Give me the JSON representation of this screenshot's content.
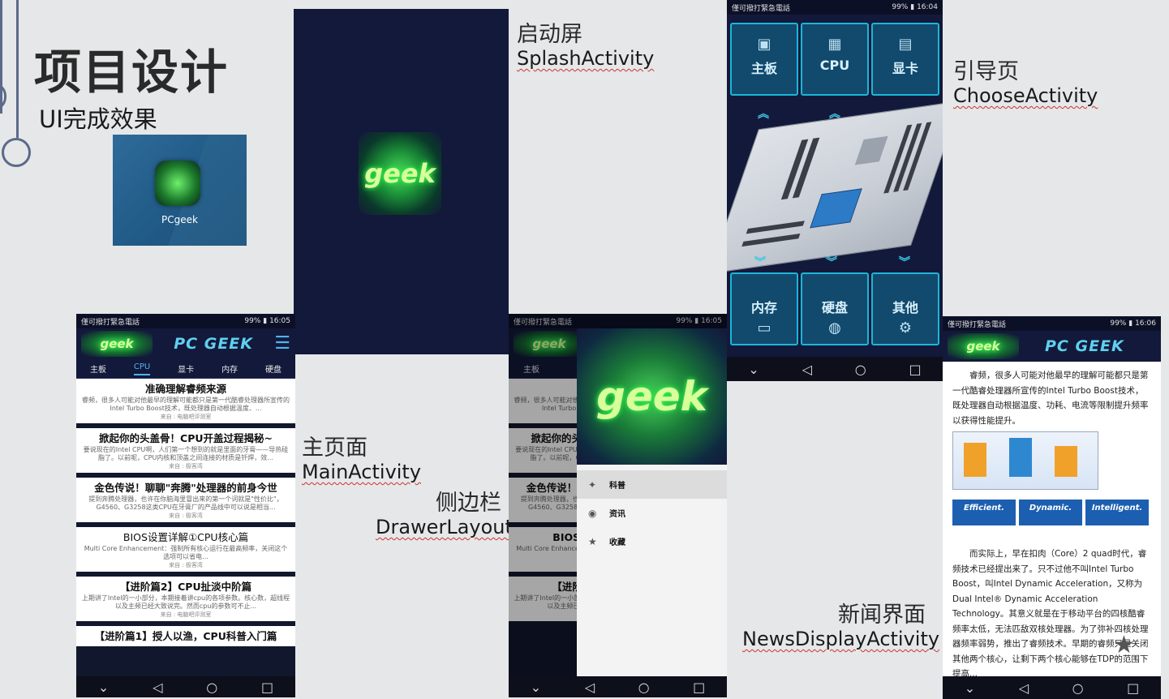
{
  "slide": {
    "title": "项目设计",
    "subtitle": "UI完成效果",
    "app_icon_label": "PCgeek"
  },
  "labels": {
    "splash_cn": "启动屏",
    "splash_en": "SplashActivity",
    "choose_cn": "引导页",
    "choose_en": "ChooseActivity",
    "main_cn": "主页面",
    "main_en": "MainActivity",
    "drawer_cn": "侧边栏",
    "drawer_en": "DrawerLayout",
    "news_cn": "新闻界面",
    "news_en": "NewsDisplayActivity"
  },
  "logo_text": "geek",
  "status": {
    "carrier": "僅可撥打緊急電話",
    "battery": "99%",
    "time_main": "16:05",
    "time_drawer": "16:05",
    "time_choose": "16:04",
    "time_news": "16:06"
  },
  "app": {
    "title": "PC GEEK",
    "tabs": [
      "主板",
      "CPU",
      "显卡",
      "内存",
      "硬盘"
    ],
    "active_tab": "CPU",
    "articles": [
      {
        "title": "准确理解睿频来源",
        "summary": "睿频，很多人可能对他最早的理解可能都只是第一代酷睿处理器所宣传的Intel Turbo Boost技术，既处理器自动根据温度、...",
        "source": "来自 : 电脑吧评测室"
      },
      {
        "title": "掀起你的头盖骨！CPU开盖过程揭秘~",
        "summary": "要说现在的Intel CPU啊，人们第一个想到的就是里面的牙膏——导热硅脂了。以前呢，CPU内核和顶盖之间连接的材质是钎焊，效...",
        "source": "来自 : 极客湾"
      },
      {
        "title": "金色传说！聊聊\"奔腾\"处理器的前身今世",
        "summary": "提到奔腾处理器，也许在你脑海里冒出来的第一个词就是\"性价比\"，G4560、G3258这类CPU在牙膏厂的产品线中可以说是相当...",
        "source": "来自 : 极客湾"
      },
      {
        "title": "BIOS设置详解①CPU核心篇",
        "summary": "Multi Core Enhancement：强制所有核心运行在最高频率，关闭这个选项可以省电...",
        "source": "来自 : 极客湾"
      },
      {
        "title": "【进阶篇2】CPU扯淡中阶篇",
        "summary": "上期讲了Intel的一小部分，本期接着讲cpu的各项参数。核心数，超线程以及主频已经大致说完。然而cpu的参数可不止...",
        "source": "来自 : 电脑吧评测室"
      },
      {
        "title": "【进阶篇1】授人以渔，CPU科普入门篇",
        "summary": "",
        "source": ""
      }
    ]
  },
  "drawer": {
    "menu": [
      {
        "icon": "✦",
        "label": "科普"
      },
      {
        "icon": "◉",
        "label": "资讯"
      },
      {
        "icon": "★",
        "label": "收藏"
      }
    ]
  },
  "choose": {
    "top": [
      {
        "icon": "▣",
        "label": "主板"
      },
      {
        "icon": "▦",
        "label": "CPU"
      },
      {
        "icon": "▤",
        "label": "显卡"
      }
    ],
    "bottom": [
      {
        "icon": "▭",
        "label": "内存"
      },
      {
        "icon": "◍",
        "label": "硬盘"
      },
      {
        "icon": "⚙",
        "label": "其他"
      }
    ]
  },
  "news": {
    "para1": "睿频，很多人可能对他最早的理解可能都只是第一代酷睿处理器所宣传的Intel Turbo Boost技术，既处理器自动根据温度、功耗、电流等限制提升频率以获得性能提升。",
    "figure_labels": [
      "Efficient.",
      "Dynamic.",
      "Intelligent."
    ],
    "para2": "而实际上，早在扣肉（Core）2 quad时代，睿频技术已经提出来了。只不过他不叫Intel Turbo Boost，叫Intel Dynamic Acceleration，又称为Dual Intel® Dynamic Acceleration Technology。其意义就是在于移动平台的四核酷睿频率太低，无法匹敌双核处理器。为了弥补四核处理器频率弱势，推出了睿频技术。早期的睿频只是关闭其他两个核心，让剩下两个核心能够在TDP的范围下提高..."
  }
}
